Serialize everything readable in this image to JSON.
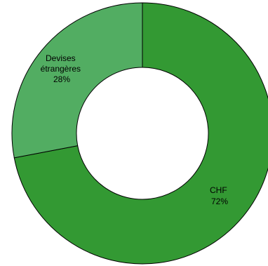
{
  "chart_data": {
    "type": "pie",
    "donut": true,
    "labels": [
      "CHF",
      "Devises étrangères"
    ],
    "values": [
      72,
      28
    ],
    "value_labels": [
      "72%",
      "28%"
    ],
    "colors": [
      "#339933",
      "#52AD62"
    ],
    "start_angle_deg": 0,
    "direction": "clockwise"
  }
}
